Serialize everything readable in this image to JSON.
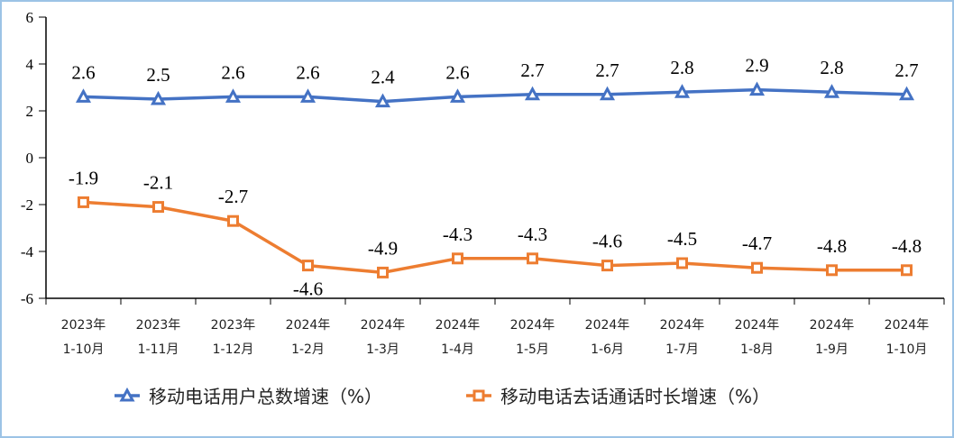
{
  "chart_data": {
    "type": "line",
    "categories": [
      [
        "2023年",
        "1-10月"
      ],
      [
        "2023年",
        "1-11月"
      ],
      [
        "2023年",
        "1-12月"
      ],
      [
        "2024年",
        "1-2月"
      ],
      [
        "2024年",
        "1-3月"
      ],
      [
        "2024年",
        "1-4月"
      ],
      [
        "2024年",
        "1-5月"
      ],
      [
        "2024年",
        "1-6月"
      ],
      [
        "2024年",
        "1-7月"
      ],
      [
        "2024年",
        "1-8月"
      ],
      [
        "2024年",
        "1-9月"
      ],
      [
        "2024年",
        "1-10月"
      ]
    ],
    "yticks": [
      "6",
      "4",
      "2",
      "0",
      "-2",
      "-4",
      "-6"
    ],
    "ylim": [
      -6,
      6
    ],
    "grid": false,
    "legend_position": "bottom",
    "series": [
      {
        "name": "移动电话用户总数增速（%）",
        "color": "#4472c4",
        "marker": "triangle",
        "values": [
          2.6,
          2.5,
          2.6,
          2.6,
          2.4,
          2.6,
          2.7,
          2.7,
          2.8,
          2.9,
          2.8,
          2.7
        ],
        "labels": [
          "2.6",
          "2.5",
          "2.6",
          "2.6",
          "2.4",
          "2.6",
          "2.7",
          "2.7",
          "2.8",
          "2.9",
          "2.8",
          "2.7"
        ]
      },
      {
        "name": "移动电话去话通话时长增速（%）",
        "color": "#ed7d31",
        "marker": "square",
        "values": [
          -1.9,
          -2.1,
          -2.7,
          -4.6,
          -4.9,
          -4.3,
          -4.3,
          -4.6,
          -4.5,
          -4.7,
          -4.8,
          -4.8
        ],
        "labels": [
          "-1.9",
          "-2.1",
          "-2.7",
          "-4.6",
          "-4.9",
          "-4.3",
          "-4.3",
          "-4.6",
          "-4.5",
          "-4.7",
          "-4.8",
          "-4.8"
        ]
      }
    ]
  }
}
